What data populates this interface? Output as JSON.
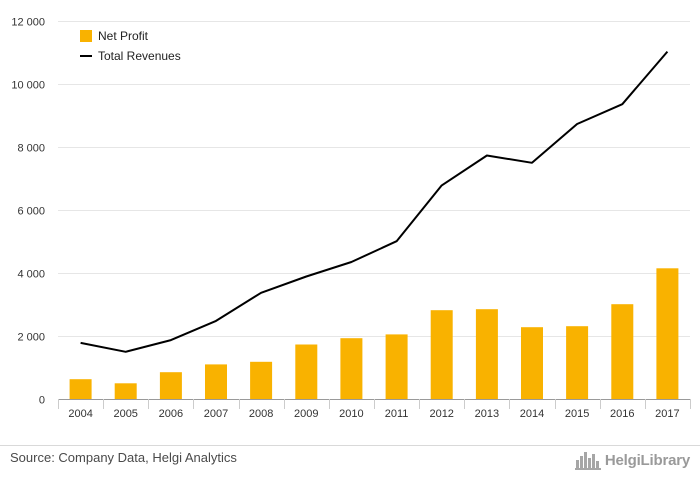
{
  "chart_data": {
    "type": "bar",
    "categories": [
      "2004",
      "2005",
      "2006",
      "2007",
      "2008",
      "2009",
      "2010",
      "2011",
      "2012",
      "2013",
      "2014",
      "2015",
      "2016",
      "2017"
    ],
    "series": [
      {
        "name": "Net Profit",
        "type": "bar",
        "color": "#F9B200",
        "values": [
          630,
          500,
          850,
          1100,
          1180,
          1730,
          1930,
          2050,
          2820,
          2850,
          2280,
          2310,
          3010,
          4150
        ]
      },
      {
        "name": "Total Revenues",
        "type": "line",
        "color": "#000000",
        "values": [
          1780,
          1500,
          1870,
          2480,
          3370,
          3890,
          4350,
          5010,
          6780,
          7730,
          7500,
          8730,
          9360,
          11030
        ]
      }
    ],
    "yticks": [
      0,
      2000,
      4000,
      6000,
      8000,
      10000,
      12000
    ],
    "ytick_labels": [
      "0",
      "2 000",
      "4 000",
      "6 000",
      "8 000",
      "10 000",
      "12 000"
    ],
    "ylim": [
      0,
      12000
    ],
    "grid": true,
    "legend": "top-left"
  },
  "footer": {
    "source": "Source: Company Data, Helgi Analytics",
    "brand": "HelgiLibrary",
    "brand_icon": "city-skyline-icon"
  }
}
